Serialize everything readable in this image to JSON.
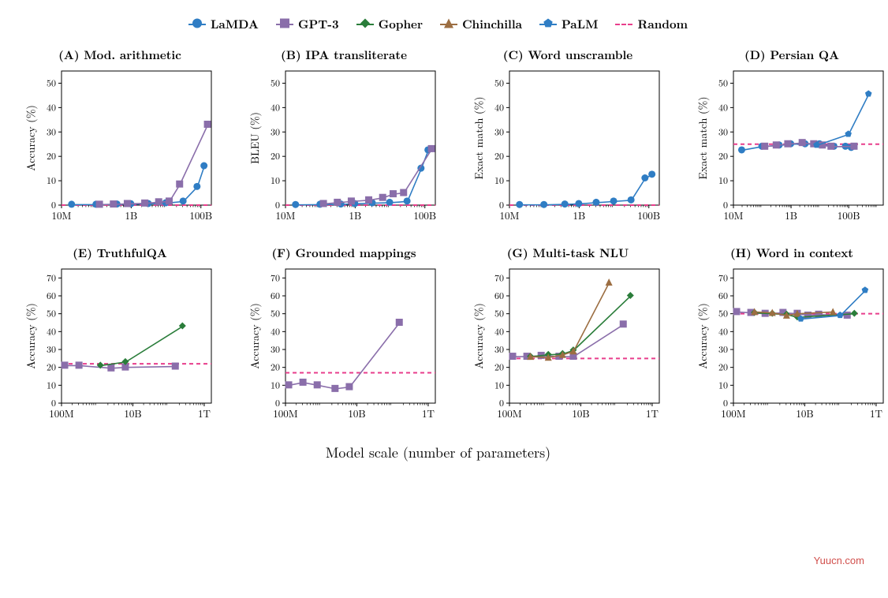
{
  "legend": [
    {
      "label": "LaMDA",
      "color": "#2f7dc4",
      "marker": "circle"
    },
    {
      "label": "GPT-3",
      "color": "#8a6eaa",
      "marker": "square"
    },
    {
      "label": "Gopher",
      "color": "#2a7d3a",
      "marker": "diamond"
    },
    {
      "label": "Chinchilla",
      "color": "#9c6e42",
      "marker": "triangle"
    },
    {
      "label": "PaLM",
      "color": "#2f7dc4",
      "marker": "pentagon"
    },
    {
      "label": "Random",
      "color": "#e83e8c",
      "marker": "dashed"
    }
  ],
  "xlabel": "Model scale (number of parameters)",
  "watermark": "Yuucn.com",
  "shared": {
    "grid_color": "#bfbfbf",
    "axis_color": "#000000",
    "tick_fontsize": 12,
    "title_fontsize": 15,
    "line_width": 1.6,
    "marker_size": 4.5,
    "random_color": "#e83e8c",
    "random_dash": "5,4"
  },
  "panels": [
    {
      "id": "A",
      "title": "(A)  Mod. arithmetic",
      "ylabel": "Accuracy (%)",
      "xlog": [
        7,
        11.3
      ],
      "xticks": [
        {
          "v": 7,
          "l": "10M"
        },
        {
          "v": 9,
          "l": "1B"
        },
        {
          "v": 11,
          "l": "100B"
        }
      ],
      "ylim": [
        0,
        55
      ],
      "yticks": [
        0,
        10,
        20,
        30,
        40,
        50
      ],
      "random": 0,
      "series": [
        {
          "name": "LaMDA",
          "color": "#2f7dc4",
          "marker": "circle",
          "pts": [
            [
              7.3,
              0.2
            ],
            [
              8,
              0.2
            ],
            [
              8.6,
              0.3
            ],
            [
              9,
              0.4
            ],
            [
              9.5,
              0.5
            ],
            [
              10,
              0.8
            ],
            [
              10.5,
              1.5
            ],
            [
              10.9,
              7.5
            ],
            [
              11.1,
              16
            ]
          ]
        },
        {
          "name": "GPT-3",
          "color": "#8a6eaa",
          "marker": "square",
          "pts": [
            [
              8.1,
              0.2
            ],
            [
              8.5,
              0.3
            ],
            [
              8.9,
              0.5
            ],
            [
              9.4,
              0.7
            ],
            [
              9.8,
              1.2
            ],
            [
              10.1,
              1.5
            ],
            [
              10.4,
              8.5
            ],
            [
              11.2,
              33
            ]
          ]
        }
      ]
    },
    {
      "id": "B",
      "title": "(B)  IPA transliterate",
      "ylabel": "BLEU (%)",
      "xlog": [
        7,
        11.3
      ],
      "xticks": [
        {
          "v": 7,
          "l": "10M"
        },
        {
          "v": 9,
          "l": "1B"
        },
        {
          "v": 11,
          "l": "100B"
        }
      ],
      "ylim": [
        0,
        55
      ],
      "yticks": [
        0,
        10,
        20,
        30,
        40,
        50
      ],
      "random": 0,
      "series": [
        {
          "name": "LaMDA",
          "color": "#2f7dc4",
          "marker": "circle",
          "pts": [
            [
              7.3,
              0.1
            ],
            [
              8,
              0.2
            ],
            [
              8.6,
              0.3
            ],
            [
              9,
              0.5
            ],
            [
              9.5,
              0.8
            ],
            [
              10,
              1.0
            ],
            [
              10.5,
              1.5
            ],
            [
              10.9,
              15
            ],
            [
              11.1,
              22.5
            ]
          ]
        },
        {
          "name": "GPT-3",
          "color": "#8a6eaa",
          "marker": "square",
          "pts": [
            [
              8.1,
              0.5
            ],
            [
              8.5,
              1.0
            ],
            [
              8.9,
              1.5
            ],
            [
              9.4,
              2.0
            ],
            [
              9.8,
              3.0
            ],
            [
              10.1,
              4.5
            ],
            [
              10.4,
              5.0
            ],
            [
              11.2,
              23
            ]
          ]
        }
      ]
    },
    {
      "id": "C",
      "title": "(C)  Word unscramble",
      "ylabel": "Exact match (%)",
      "xlog": [
        7,
        11.3
      ],
      "xticks": [
        {
          "v": 7,
          "l": "10M"
        },
        {
          "v": 9,
          "l": "1B"
        },
        {
          "v": 11,
          "l": "100B"
        }
      ],
      "ylim": [
        0,
        55
      ],
      "yticks": [
        0,
        10,
        20,
        30,
        40,
        50
      ],
      "random": 0,
      "series": [
        {
          "name": "LaMDA",
          "color": "#2f7dc4",
          "marker": "circle",
          "pts": [
            [
              7.3,
              0.1
            ],
            [
              8,
              0.1
            ],
            [
              8.6,
              0.3
            ],
            [
              9,
              0.5
            ],
            [
              9.5,
              1.0
            ],
            [
              10,
              1.5
            ],
            [
              10.5,
              2.0
            ],
            [
              10.9,
              11
            ],
            [
              11.1,
              12.5
            ]
          ]
        }
      ]
    },
    {
      "id": "D",
      "title": "(D)  Persian QA",
      "ylabel": "Exact match (%)",
      "xlog": [
        7,
        12.2
      ],
      "xticks": [
        {
          "v": 7,
          "l": "10M"
        },
        {
          "v": 9,
          "l": "1B"
        },
        {
          "v": 11,
          "l": "100B"
        }
      ],
      "ylim": [
        0,
        55
      ],
      "yticks": [
        0,
        10,
        20,
        30,
        40,
        50
      ],
      "random": 25,
      "series": [
        {
          "name": "LaMDA",
          "color": "#2f7dc4",
          "marker": "circle",
          "pts": [
            [
              7.3,
              22.5
            ],
            [
              8,
              24
            ],
            [
              8.6,
              24.5
            ],
            [
              9,
              25
            ],
            [
              9.5,
              25
            ],
            [
              10,
              25
            ],
            [
              10.5,
              24
            ],
            [
              10.9,
              24
            ],
            [
              11.1,
              23.5
            ]
          ]
        },
        {
          "name": "GPT-3",
          "color": "#8a6eaa",
          "marker": "square",
          "pts": [
            [
              8.1,
              24
            ],
            [
              8.5,
              24.5
            ],
            [
              8.9,
              25
            ],
            [
              9.4,
              25.5
            ],
            [
              9.8,
              25
            ],
            [
              10.1,
              24.5
            ],
            [
              10.4,
              24
            ],
            [
              11.2,
              24
            ]
          ]
        },
        {
          "name": "PaLM",
          "color": "#2f7dc4",
          "marker": "pentagon",
          "pts": [
            [
              9.9,
              24.5
            ],
            [
              11,
              29
            ],
            [
              11.7,
              45.5
            ]
          ]
        }
      ]
    },
    {
      "id": "E",
      "title": "(E)  TruthfulQA",
      "ylabel": "Accuracy (%)",
      "xlog": [
        8,
        12.2
      ],
      "xticks": [
        {
          "v": 8,
          "l": "100M"
        },
        {
          "v": 10,
          "l": "10B"
        },
        {
          "v": 12,
          "l": "1T"
        }
      ],
      "ylim": [
        0,
        75
      ],
      "yticks": [
        0,
        10,
        20,
        30,
        40,
        50,
        60,
        70
      ],
      "random": 22,
      "series": [
        {
          "name": "GPT-3",
          "color": "#8a6eaa",
          "marker": "square",
          "pts": [
            [
              8.1,
              21
            ],
            [
              8.5,
              21
            ],
            [
              9.4,
              19.5
            ],
            [
              9.8,
              20
            ],
            [
              11.2,
              20.5
            ]
          ]
        },
        {
          "name": "Gopher",
          "color": "#2a7d3a",
          "marker": "diamond",
          "pts": [
            [
              9.1,
              21
            ],
            [
              9.8,
              23
            ],
            [
              11.4,
              43
            ]
          ]
        }
      ]
    },
    {
      "id": "F",
      "title": "(F)  Grounded mappings",
      "ylabel": "Accuracy (%)",
      "xlog": [
        8,
        12.2
      ],
      "xticks": [
        {
          "v": 8,
          "l": "100M"
        },
        {
          "v": 10,
          "l": "10B"
        },
        {
          "v": 12,
          "l": "1T"
        }
      ],
      "ylim": [
        0,
        75
      ],
      "yticks": [
        0,
        10,
        20,
        30,
        40,
        50,
        60,
        70
      ],
      "random": 17,
      "series": [
        {
          "name": "GPT-3",
          "color": "#8a6eaa",
          "marker": "square",
          "pts": [
            [
              8.1,
              10
            ],
            [
              8.5,
              11.5
            ],
            [
              8.9,
              10
            ],
            [
              9.4,
              8
            ],
            [
              9.8,
              9
            ],
            [
              11.2,
              45
            ]
          ]
        }
      ]
    },
    {
      "id": "G",
      "title": "(G)  Multi-task NLU",
      "ylabel": "Accuracy (%)",
      "xlog": [
        8,
        12.2
      ],
      "xticks": [
        {
          "v": 8,
          "l": "100M"
        },
        {
          "v": 10,
          "l": "10B"
        },
        {
          "v": 12,
          "l": "1T"
        }
      ],
      "ylim": [
        0,
        75
      ],
      "yticks": [
        0,
        10,
        20,
        30,
        40,
        50,
        60,
        70
      ],
      "random": 25,
      "series": [
        {
          "name": "GPT-3",
          "color": "#8a6eaa",
          "marker": "square",
          "pts": [
            [
              8.1,
              26
            ],
            [
              8.5,
              26
            ],
            [
              8.9,
              26.5
            ],
            [
              9.4,
              26
            ],
            [
              9.8,
              26
            ],
            [
              11.2,
              44
            ]
          ]
        },
        {
          "name": "Gopher",
          "color": "#2a7d3a",
          "marker": "diamond",
          "pts": [
            [
              8.6,
              26
            ],
            [
              9.1,
              27
            ],
            [
              9.5,
              27.5
            ],
            [
              9.8,
              29.5
            ],
            [
              11.4,
              60
            ]
          ]
        },
        {
          "name": "Chinchilla",
          "color": "#9c6e42",
          "marker": "triangle",
          "pts": [
            [
              8.6,
              26
            ],
            [
              9.1,
              25.5
            ],
            [
              9.5,
              27
            ],
            [
              9.8,
              29
            ],
            [
              10.8,
              67.5
            ]
          ]
        }
      ]
    },
    {
      "id": "H",
      "title": "(H)  Word in context",
      "ylabel": "Accuracy (%)",
      "xlog": [
        8,
        12.2
      ],
      "xticks": [
        {
          "v": 8,
          "l": "100M"
        },
        {
          "v": 10,
          "l": "10B"
        },
        {
          "v": 12,
          "l": "1T"
        }
      ],
      "ylim": [
        0,
        75
      ],
      "yticks": [
        0,
        10,
        20,
        30,
        40,
        50,
        60,
        70
      ],
      "random": 50,
      "series": [
        {
          "name": "GPT-3",
          "color": "#8a6eaa",
          "marker": "square",
          "pts": [
            [
              8.1,
              51
            ],
            [
              8.5,
              50.5
            ],
            [
              8.9,
              50
            ],
            [
              9.4,
              50.5
            ],
            [
              9.8,
              50
            ],
            [
              10.1,
              49
            ],
            [
              10.4,
              49.5
            ],
            [
              11.2,
              49
            ]
          ]
        },
        {
          "name": "Gopher",
          "color": "#2a7d3a",
          "marker": "diamond",
          "pts": [
            [
              8.6,
              50.5
            ],
            [
              9.1,
              50
            ],
            [
              9.5,
              49.5
            ],
            [
              9.8,
              48
            ],
            [
              11.4,
              50
            ]
          ]
        },
        {
          "name": "Chinchilla",
          "color": "#9c6e42",
          "marker": "triangle",
          "pts": [
            [
              8.6,
              51
            ],
            [
              9.1,
              50.5
            ],
            [
              9.5,
              49
            ],
            [
              9.8,
              50
            ],
            [
              10.8,
              51
            ]
          ]
        },
        {
          "name": "PaLM",
          "color": "#2f7dc4",
          "marker": "pentagon",
          "pts": [
            [
              9.9,
              47
            ],
            [
              11,
              49
            ],
            [
              11.7,
              63
            ]
          ]
        }
      ]
    }
  ]
}
